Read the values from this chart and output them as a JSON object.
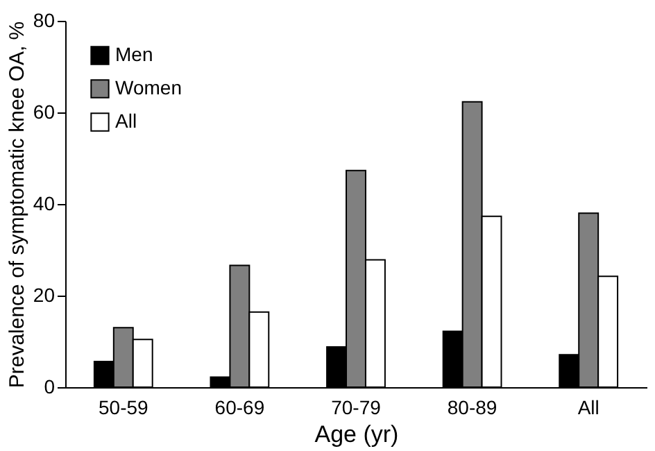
{
  "chart_data": {
    "type": "bar",
    "xlabel": "Age (yr)",
    "ylabel": "Prevalence of symptomatic knee OA, %",
    "categories": [
      "50-59",
      "60-69",
      "70-79",
      "80-89",
      "All"
    ],
    "series": [
      {
        "name": "Men",
        "color": "#000000",
        "values": [
          5.6,
          2.2,
          8.8,
          12.2,
          7.1
        ]
      },
      {
        "name": "Women",
        "color": "#808080",
        "values": [
          13.0,
          26.6,
          47.3,
          62.3,
          38.0
        ]
      },
      {
        "name": "All",
        "color": "#ffffff",
        "values": [
          10.4,
          16.4,
          27.8,
          37.3,
          24.2
        ]
      }
    ],
    "ylim": [
      0,
      80
    ],
    "yticks": [
      0,
      20,
      40,
      60,
      80
    ],
    "grid": false,
    "legend": "top left"
  }
}
